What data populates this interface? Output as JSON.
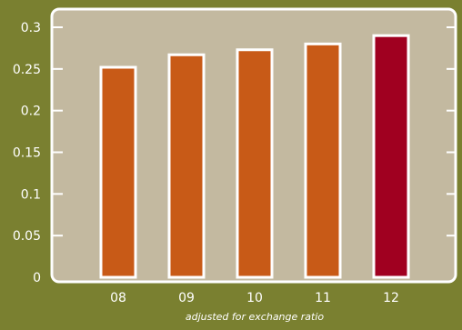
{
  "chart_data": {
    "type": "bar",
    "categories": [
      "08",
      "09",
      "10",
      "11",
      "12"
    ],
    "values": [
      0.252,
      0.267,
      0.273,
      0.28,
      0.29
    ],
    "highlight_index": 4,
    "ylim": [
      0,
      0.3
    ],
    "yticks": [
      "0",
      "0.05",
      "0.1",
      "0.15",
      "0.2",
      "0.25",
      "0.3"
    ],
    "ytick_values": [
      0,
      0.05,
      0.1,
      0.15,
      0.2,
      0.25,
      0.3
    ],
    "note": "adjusted for exchange ratio",
    "grid": false,
    "colors": {
      "background": "#7a8030",
      "plot_area": "#c3b9a0",
      "bar": "#c85a17",
      "bar_highlight": "#a00020",
      "bar_outline": "#ffffff"
    }
  }
}
